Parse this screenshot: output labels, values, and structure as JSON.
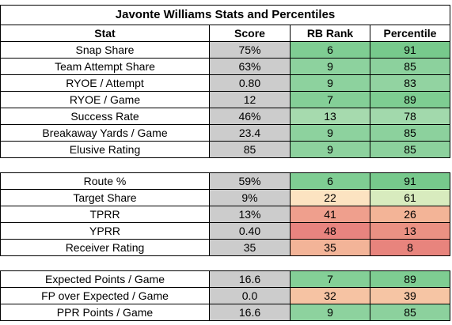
{
  "title": "Javonte Williams Stats and Percentiles",
  "headers": {
    "stat": "Stat",
    "score": "Score",
    "rank": "RB Rank",
    "percentile": "Percentile"
  },
  "sections": [
    {
      "rows": [
        {
          "stat": "Snap Share",
          "score": "75%",
          "rank": "6",
          "percentile": "91",
          "rank_color": "#7fcd93",
          "pct_color": "#77c98c"
        },
        {
          "stat": "Team Attempt Share",
          "score": "63%",
          "rank": "9",
          "percentile": "85",
          "rank_color": "#8dd29e",
          "pct_color": "#8cd19d"
        },
        {
          "stat": "RYOE / Attempt",
          "score": "0.80",
          "rank": "9",
          "percentile": "83",
          "rank_color": "#8dd29e",
          "pct_color": "#92d3a1"
        },
        {
          "stat": "RYOE / Game",
          "score": "12",
          "rank": "7",
          "percentile": "89",
          "rank_color": "#84cf97",
          "pct_color": "#7ecd92"
        },
        {
          "stat": "Success Rate",
          "score": "46%",
          "rank": "13",
          "percentile": "78",
          "rank_color": "#a6daae",
          "pct_color": "#a2d9ac"
        },
        {
          "stat": "Breakaway Yards / Game",
          "score": "23.4",
          "rank": "9",
          "percentile": "85",
          "rank_color": "#8dd29e",
          "pct_color": "#8cd19d"
        },
        {
          "stat": "Elusive Rating",
          "score": "85",
          "rank": "9",
          "percentile": "85",
          "rank_color": "#8dd29e",
          "pct_color": "#8cd19d"
        }
      ]
    },
    {
      "rows": [
        {
          "stat": "Route %",
          "score": "59%",
          "rank": "6",
          "percentile": "91",
          "rank_color": "#7fcd93",
          "pct_color": "#77c98c"
        },
        {
          "stat": "Target Share",
          "score": "9%",
          "rank": "22",
          "percentile": "61",
          "rank_color": "#fce3c1",
          "pct_color": "#d8ebbe"
        },
        {
          "stat": "TPRR",
          "score": "13%",
          "rank": "41",
          "percentile": "26",
          "rank_color": "#ef9f8d",
          "pct_color": "#f3b497"
        },
        {
          "stat": "YPRR",
          "score": "0.40",
          "rank": "48",
          "percentile": "13",
          "rank_color": "#e8847f",
          "pct_color": "#ea9183"
        },
        {
          "stat": "Receiver Rating",
          "score": "35",
          "rank": "35",
          "percentile": "8",
          "rank_color": "#f3b498",
          "pct_color": "#e8847d"
        }
      ]
    },
    {
      "rows": [
        {
          "stat": "Expected Points / Game",
          "score": "16.6",
          "rank": "7",
          "percentile": "89",
          "rank_color": "#84cf97",
          "pct_color": "#7ecd92"
        },
        {
          "stat": "FP over Expected / Game",
          "score": "0.0",
          "rank": "32",
          "percentile": "39",
          "rank_color": "#f6c3a3",
          "pct_color": "#f6c5a4"
        },
        {
          "stat": "PPR Points / Game",
          "score": "16.6",
          "rank": "9",
          "percentile": "85",
          "rank_color": "#8dd29e",
          "pct_color": "#8cd19d"
        }
      ]
    }
  ]
}
